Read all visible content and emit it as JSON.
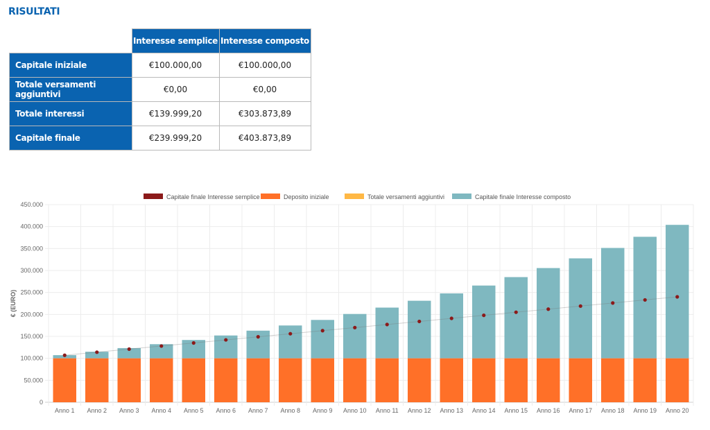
{
  "page": {
    "title": "RISULTATI"
  },
  "results_table": {
    "columns": [
      "Interesse semplice",
      "Interesse composto"
    ],
    "rows": [
      {
        "label": "Capitale iniziale",
        "values": [
          "€100.000,00",
          "€100.000,00"
        ]
      },
      {
        "label": "Totale versamenti aggiuntivi",
        "values": [
          "€0,00",
          "€0,00"
        ]
      },
      {
        "label": "Totale interessi",
        "values": [
          "€139.999,20",
          "€303.873,89"
        ]
      },
      {
        "label": "Capitale finale",
        "values": [
          "€239.999,20",
          "€403.873,89"
        ]
      }
    ]
  },
  "colors": {
    "header_bg": "#0a63b0",
    "simple_interest": "#8b1a1a",
    "initial_deposit": "#ff7028",
    "additional_deposits": "#ffb845",
    "compound_interest": "#7fb8c0"
  },
  "chart_data": {
    "type": "bar",
    "stacked": true,
    "title": "",
    "xlabel": "",
    "ylabel": "€ (EURO)",
    "ylim": [
      0,
      450000
    ],
    "yticks": [
      0,
      50000,
      100000,
      150000,
      200000,
      250000,
      300000,
      350000,
      400000,
      450000
    ],
    "ytick_labels": [
      "0",
      "50.000",
      "100.000",
      "150.000",
      "200.000",
      "250.000",
      "300.000",
      "350.000",
      "400.000",
      "450.000"
    ],
    "grid": true,
    "legend_position": "top",
    "categories": [
      "Anno 1",
      "Anno 2",
      "Anno 3",
      "Anno 4",
      "Anno 5",
      "Anno 6",
      "Anno 7",
      "Anno 8",
      "Anno 9",
      "Anno 10",
      "Anno 11",
      "Anno 12",
      "Anno 13",
      "Anno 14",
      "Anno 15",
      "Anno 16",
      "Anno 17",
      "Anno 18",
      "Anno 19",
      "Anno 20"
    ],
    "series": [
      {
        "name": "Capitale finale Interesse semplice",
        "kind": "line-points",
        "color": "#8b1a1a",
        "values": [
          107000,
          114000,
          121000,
          128000,
          135000,
          142000,
          149000,
          156000,
          163000,
          170000,
          177000,
          184000,
          191000,
          198000,
          205000,
          212000,
          219000,
          226000,
          233000,
          239999
        ]
      },
      {
        "name": "Deposito iniziale",
        "kind": "bar",
        "color": "#ff7028",
        "values": [
          100000,
          100000,
          100000,
          100000,
          100000,
          100000,
          100000,
          100000,
          100000,
          100000,
          100000,
          100000,
          100000,
          100000,
          100000,
          100000,
          100000,
          100000,
          100000,
          100000
        ]
      },
      {
        "name": "Totale versamenti aggiuntivi",
        "kind": "bar",
        "color": "#ffb845",
        "values": [
          0,
          0,
          0,
          0,
          0,
          0,
          0,
          0,
          0,
          0,
          0,
          0,
          0,
          0,
          0,
          0,
          0,
          0,
          0,
          0
        ]
      },
      {
        "name": "Capitale finale Interesse composto",
        "kind": "bar-total",
        "color": "#7fb8c0",
        "values": [
          107230,
          114983,
          123296,
          132210,
          141769,
          152019,
          163010,
          174795,
          187433,
          200984,
          215515,
          231097,
          247805,
          265721,
          284932,
          305532,
          327622,
          351309,
          376708,
          403874
        ]
      }
    ]
  }
}
